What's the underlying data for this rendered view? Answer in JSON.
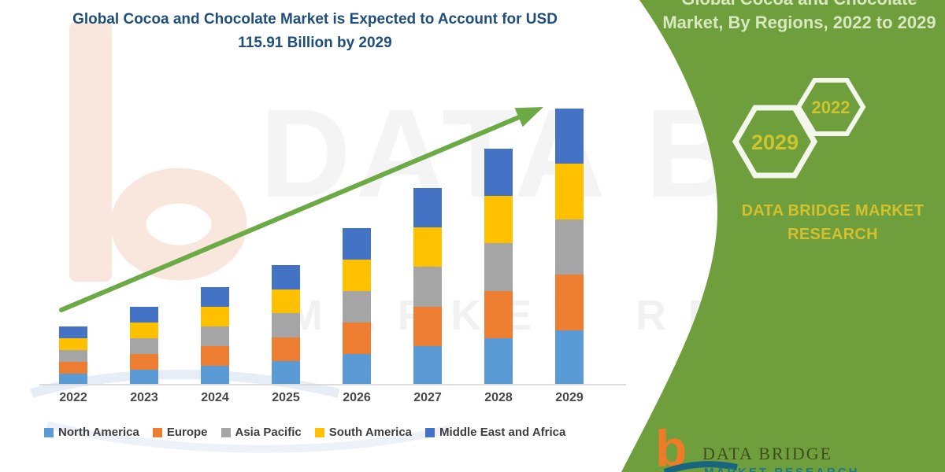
{
  "title": {
    "line1": "Global Cocoa and Chocolate Market is Expected to Account for USD",
    "line2": "115.91 Billion by 2029"
  },
  "watermark": {
    "big_text": "DATA BRIDGE",
    "sub_text": "MARKET RESEARCH"
  },
  "sidebar": {
    "title_line1": "Global Cocoa and Chocolate",
    "title_line2": "Market, By Regions, 2022 to 2029",
    "hex_year_large": "2029",
    "hex_year_small": "2022",
    "brand_line1": "DATA BRIDGE MARKET",
    "brand_line2": "RESEARCH",
    "colors": {
      "bg": "#6f9e3c",
      "hex_stroke": "#f3f7ec",
      "year_text": "#cdc42e",
      "title_text": "#d8e8bf",
      "brand_text": "#d2c02f"
    }
  },
  "footer_logo": {
    "glyph": "b",
    "name": "DATA BRIDGE",
    "sub": "MARKET RESEARCH",
    "colors": {
      "glyph": "#ee7c27",
      "name": "#3e4d1e",
      "sub": "#1a7a8a"
    }
  },
  "trend_arrow_color": "#6caa45",
  "chart_data": {
    "type": "bar",
    "stacked": true,
    "title": "Global Cocoa and Chocolate Market is Expected to Account for USD 115.91 Billion by 2029",
    "xlabel": "",
    "ylabel": "",
    "grid": false,
    "legend_position": "bottom",
    "categories": [
      "2022",
      "2023",
      "2024",
      "2025",
      "2026",
      "2027",
      "2028",
      "2029"
    ],
    "series": [
      {
        "name": "North America",
        "color": "#5b9bd5",
        "values": [
          4.94,
          6.58,
          8.24,
          10.08,
          13.18,
          16.54,
          19.82,
          23.18
        ]
      },
      {
        "name": "Europe",
        "color": "#ed7d31",
        "values": [
          4.94,
          6.58,
          8.24,
          10.08,
          13.18,
          16.54,
          19.82,
          23.18
        ]
      },
      {
        "name": "Asia Pacific",
        "color": "#a5a5a5",
        "values": [
          4.94,
          6.58,
          8.24,
          10.08,
          13.18,
          16.54,
          19.82,
          23.18
        ]
      },
      {
        "name": "South America",
        "color": "#ffc000",
        "values": [
          4.94,
          6.58,
          8.24,
          10.08,
          13.18,
          16.54,
          19.82,
          23.18
        ]
      },
      {
        "name": "Middle East and Africa",
        "color": "#4472c4",
        "values": [
          4.94,
          6.58,
          8.24,
          10.08,
          13.18,
          16.54,
          19.82,
          23.18
        ]
      }
    ],
    "totals_estimated": [
      24.7,
      32.9,
      41.2,
      50.4,
      65.9,
      82.7,
      99.1,
      115.91
    ],
    "labeled_value": "USD 115.91 Billion by 2029",
    "values_estimated_from_pixels": true,
    "trend_arrow": true
  }
}
